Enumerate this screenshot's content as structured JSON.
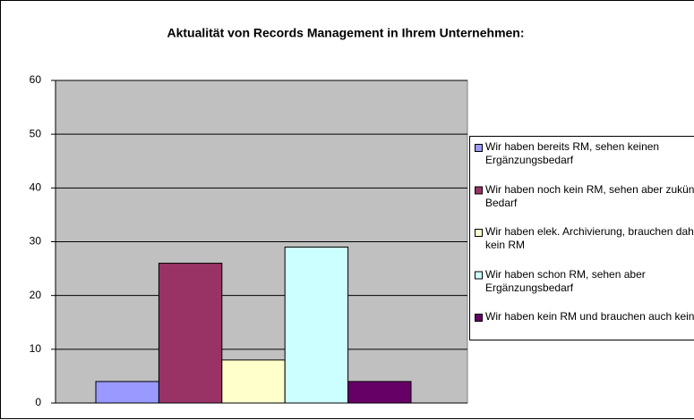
{
  "chart_data": {
    "type": "bar",
    "title": "Aktualität von Records Management in Ihrem Unternehmen:",
    "categories": [
      null
    ],
    "series": [
      {
        "name": "Wir haben bereits RM, sehen keinen Ergänzungsbedarf",
        "color": "#9999ff",
        "values": [
          4
        ]
      },
      {
        "name": "Wir haben noch kein RM, sehen aber zukünftig Bedarf",
        "color": "#993366",
        "values": [
          26
        ]
      },
      {
        "name": "Wir haben elek. Archivierung, brauchen daher kein RM",
        "color": "#ffffcc",
        "values": [
          8
        ]
      },
      {
        "name": "Wir haben schon RM, sehen aber Ergänzungsbedarf",
        "color": "#ccffff",
        "values": [
          29
        ]
      },
      {
        "name": "Wir haben kein RM und brauchen auch keins",
        "color": "#660066",
        "values": [
          4
        ]
      }
    ],
    "ylim": [
      0,
      60
    ],
    "yticks": [
      0,
      10,
      20,
      30,
      40,
      50,
      60
    ],
    "grid": true,
    "legend": "right"
  }
}
